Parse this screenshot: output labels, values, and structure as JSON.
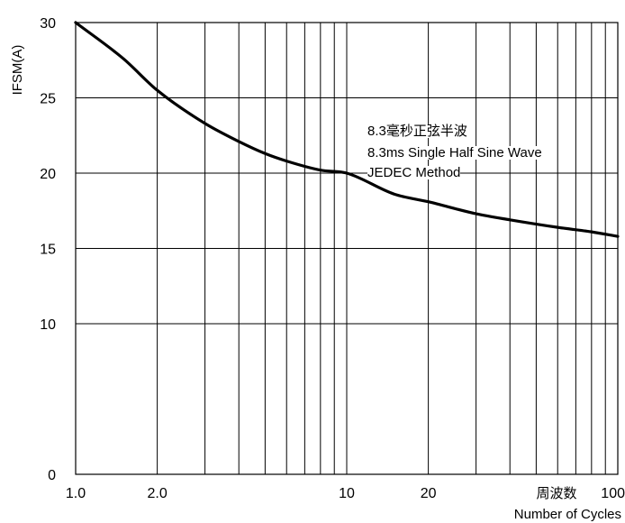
{
  "chart_data": {
    "type": "line",
    "ylabel": "IFSM(A)",
    "xlabel_cn": "周波数",
    "xlabel": "Number of Cycles",
    "x_scale": "log",
    "xlim": [
      1,
      100
    ],
    "ylim": [
      0,
      30
    ],
    "grid": true,
    "y_ticks": [
      {
        "value": 0,
        "label": "0"
      },
      {
        "value": 10,
        "label": "10"
      },
      {
        "value": 15,
        "label": "15"
      },
      {
        "value": 20,
        "label": "20"
      },
      {
        "value": 25,
        "label": "25"
      },
      {
        "value": 30,
        "label": "30"
      }
    ],
    "x_ticks": [
      {
        "value": 1,
        "label": "1.0"
      },
      {
        "value": 2,
        "label": "2.0"
      },
      {
        "value": 10,
        "label": "10"
      },
      {
        "value": 20,
        "label": "20"
      },
      {
        "value": 100,
        "label": "100"
      }
    ],
    "annotations": [
      "8.3毫秒正弦半波",
      "8.3ms Single Half Sine Wave",
      "JEDEC Method"
    ],
    "series": [
      {
        "x": [
          1,
          1.5,
          2,
          3,
          4,
          5,
          6,
          8,
          10,
          15,
          20,
          30,
          40,
          60,
          80,
          100
        ],
        "y": [
          30,
          27.6,
          25.5,
          23.3,
          22.1,
          21.3,
          20.8,
          20.2,
          20.0,
          18.6,
          18.1,
          17.3,
          16.9,
          16.4,
          16.1,
          15.8
        ]
      }
    ]
  }
}
